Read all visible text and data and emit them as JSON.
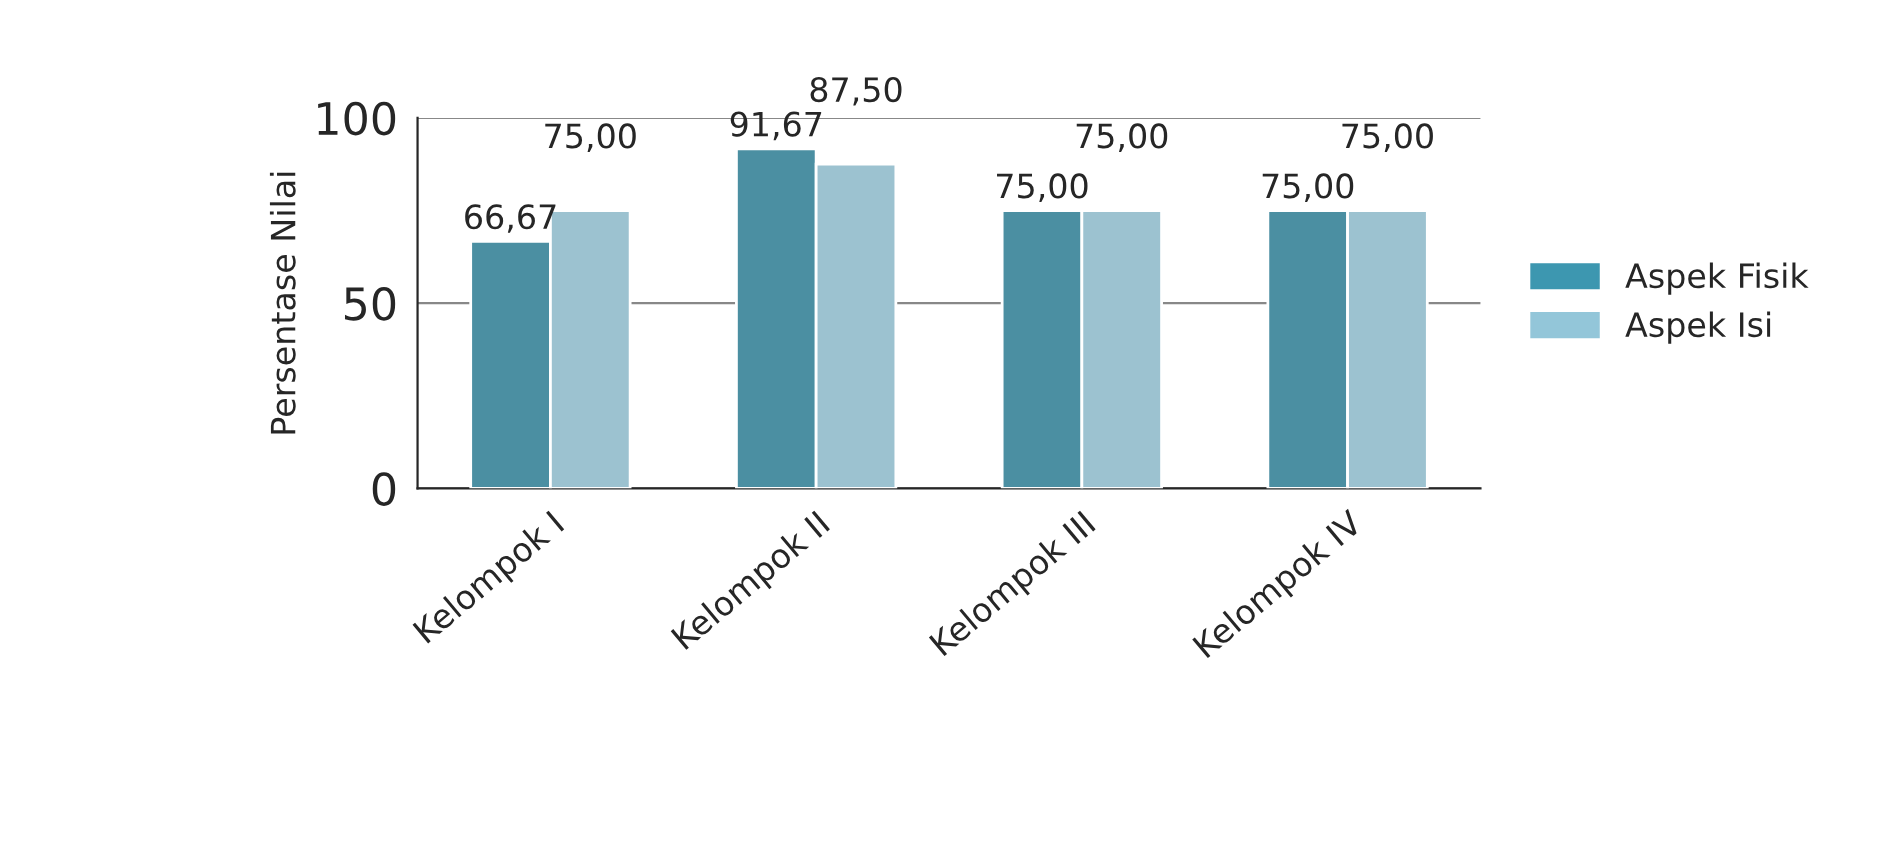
{
  "chart_data": {
    "type": "bar",
    "ylabel": "Persentase Nilai",
    "categories": [
      "Kelompok I",
      "Kelompok II",
      "Kelompok III",
      "Kelompok IV"
    ],
    "series": [
      {
        "name": "Aspek Fisik",
        "color": "#3d97b0",
        "values": [
          66.67,
          91.67,
          75,
          75
        ],
        "value_labels": [
          "66,67",
          "91,67",
          "75,00",
          "75,00"
        ]
      },
      {
        "name": "Aspek Isi",
        "color": "#93c6d9",
        "values": [
          75,
          87.5,
          75,
          75
        ],
        "value_labels": [
          "75,00",
          "87,50",
          "75,00",
          "75,00"
        ]
      }
    ],
    "ylim": [
      0,
      100
    ],
    "yticks": [
      0,
      50,
      100
    ],
    "grid": "y",
    "legend": "right"
  }
}
